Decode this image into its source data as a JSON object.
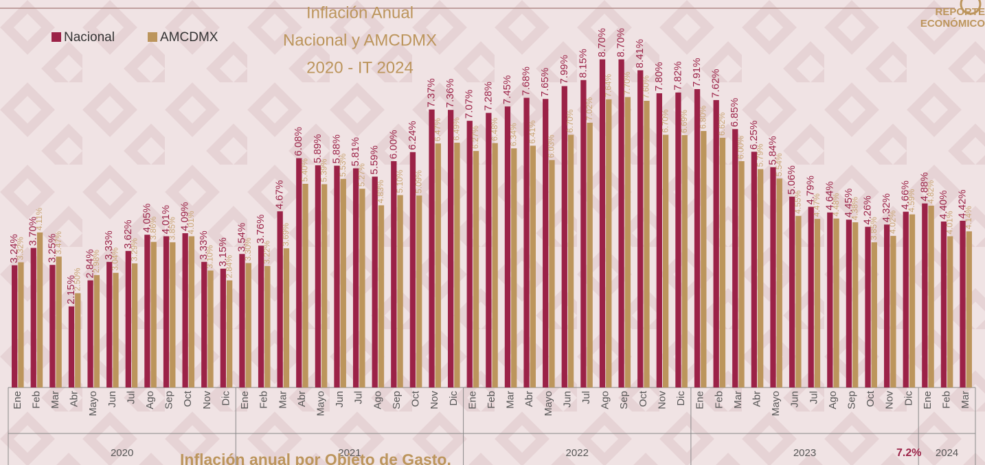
{
  "chart_data": {
    "type": "bar",
    "title": [
      "Inflación Anual",
      "Nacional y AMCDMX",
      "2020 - IT 2024"
    ],
    "logo": [
      "REPORTE",
      "ECONÓMICO"
    ],
    "annotations": [
      "Inflación anual por Objeto de Gasto.",
      "7.2%"
    ],
    "groups": [
      {
        "name": "2020",
        "categories": [
          "Ene",
          "Feb",
          "Mar",
          "Abr",
          "Mayo",
          "Jun",
          "Jul",
          "Ago",
          "Sep",
          "Oct",
          "Nov",
          "Dic"
        ]
      },
      {
        "name": "2021",
        "categories": [
          "Ene",
          "Feb",
          "Mar",
          "Abr",
          "Mayo",
          "Jun",
          "Jul",
          "Ago",
          "Sep",
          "Oct",
          "Nov",
          "Dic"
        ]
      },
      {
        "name": "2022",
        "categories": [
          "Ene",
          "Feb",
          "Mar",
          "Abr",
          "Mayo",
          "Jun",
          "Jul",
          "Ago",
          "Sep",
          "Oct",
          "Nov",
          "Dic"
        ]
      },
      {
        "name": "2023",
        "categories": [
          "Ene",
          "Feb",
          "Mar",
          "Abr",
          "Mayo",
          "Jun",
          "Jul",
          "Ago",
          "Sep",
          "Oct",
          "Nov",
          "Dic"
        ]
      },
      {
        "name": "2024",
        "categories": [
          "Ene",
          "Feb",
          "Mar"
        ]
      }
    ],
    "series": [
      {
        "name": "Nacional",
        "color": "#9b2247",
        "label_color": "#9b2247",
        "values": [
          3.24,
          3.7,
          3.25,
          2.15,
          2.84,
          3.33,
          3.62,
          4.05,
          4.01,
          4.09,
          3.33,
          3.15,
          3.54,
          3.76,
          4.67,
          6.08,
          5.89,
          5.88,
          5.81,
          5.59,
          6.0,
          6.24,
          7.37,
          7.36,
          7.07,
          7.28,
          7.45,
          7.68,
          7.65,
          7.99,
          8.15,
          8.7,
          8.7,
          8.41,
          7.8,
          7.82,
          7.91,
          7.62,
          6.85,
          6.25,
          5.84,
          5.06,
          4.79,
          4.64,
          4.45,
          4.26,
          4.32,
          4.66,
          4.88,
          4.4,
          4.42
        ],
        "value_labels": [
          "3.24%",
          "3.70%",
          "3.25%",
          "2.15%",
          "2.84%",
          "3.33%",
          "3.62%",
          "4.05%",
          "4.01%",
          "4.09%",
          "3.33%",
          "3.15%",
          "3.54%",
          "3.76%",
          "4.67%",
          "6.08%",
          "5.89%",
          "5.88%",
          "5.81%",
          "5.59%",
          "6.00%",
          "6.24%",
          "7.37%",
          "7.36%",
          "7.07%",
          "7.28%",
          "7.45%",
          "7.68%",
          "7.65%",
          "7.99%",
          "8.15%",
          "8.70%",
          "8.70%",
          "8.41%",
          "7.80%",
          "7.82%",
          "7.91%",
          "7.62%",
          "6.85%",
          "6.25%",
          "5.84%",
          "5.06%",
          "4.79%",
          "4.64%",
          "4.45%",
          "4.26%",
          "4.32%",
          "4.66%",
          "4.88%",
          "4.40%",
          "4.42%"
        ]
      },
      {
        "name": "AMCDMX",
        "color": "#bc955c",
        "label_color": "#c9a574",
        "values": [
          3.32,
          4.11,
          3.47,
          2.5,
          2.98,
          3.04,
          3.29,
          3.86,
          3.85,
          4.01,
          3.1,
          2.84,
          3.3,
          3.22,
          3.69,
          5.4,
          5.39,
          5.53,
          5.27,
          4.83,
          5.1,
          5.09,
          6.47,
          6.49,
          6.27,
          6.48,
          6.34,
          6.41,
          6.03,
          6.7,
          7.02,
          7.64,
          7.7,
          7.6,
          6.7,
          6.69,
          6.8,
          6.62,
          6.0,
          5.79,
          5.54,
          4.55,
          4.47,
          4.48,
          4.38,
          3.85,
          4.02,
          4.59,
          4.82,
          4.01,
          4.14
        ],
        "value_labels": [
          "3.32%",
          "4.11%",
          "3.47%",
          "2.50%",
          "2.98%",
          "3.04%",
          "3.29%",
          "3.86%",
          "3.85%",
          "4.01%",
          "3.10%",
          "2.84%",
          "3.30%",
          "3.22%",
          "3.69%",
          "5.40%",
          "5.39%",
          "5.53%",
          "5.27%",
          "4.83%",
          "5.10%",
          "5.09%",
          "6.47%",
          "6.49%",
          "6.27%",
          "6.48%",
          "6.34%",
          "6.41%",
          "6.03%",
          "6.70%",
          "7.02%",
          "7.64%",
          "7.70%",
          "7.60%",
          "6.70%",
          "6.69%",
          "6.80%",
          "6.62%",
          "6.00%",
          "5.79%",
          "5.54%",
          "4.55%",
          "4.47%",
          "4.48%",
          "4.38%",
          "3.85%",
          "4.02%",
          "4.59%",
          "4.82%",
          "4.01%",
          "4.14%"
        ]
      }
    ],
    "ylim": [
      0,
      9.5
    ],
    "legend": "top-left"
  }
}
